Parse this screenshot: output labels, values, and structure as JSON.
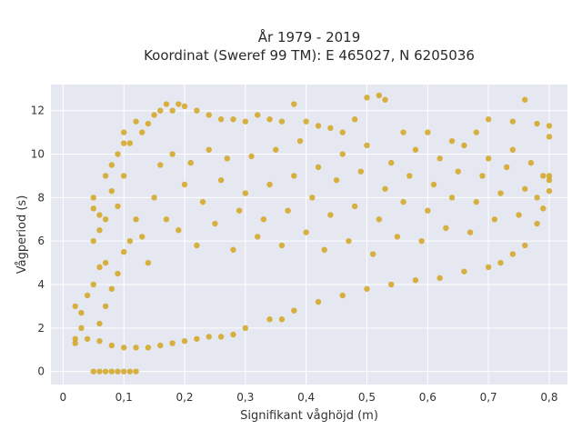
{
  "chart_data": {
    "type": "scatter",
    "title_lines": [
      "År 1979 - 2019",
      "Koordinat (Sweref 99 TM): E 465027, N 6205036"
    ],
    "xlabel": "Signifikant våghöjd (m)",
    "ylabel": "Vågperiod (s)",
    "xlim": [
      -0.02,
      0.83
    ],
    "ylim": [
      -0.6,
      13.2
    ],
    "xticks": [
      0,
      0.1,
      0.2,
      0.3,
      0.4,
      0.5,
      0.6,
      0.7,
      0.8
    ],
    "xtick_labels": [
      "0",
      "0,1",
      "0,2",
      "0,3",
      "0,4",
      "0,5",
      "0,6",
      "0,7",
      "0,8"
    ],
    "yticks": [
      0,
      2,
      4,
      6,
      8,
      10,
      12
    ],
    "ytick_labels": [
      "0",
      "2",
      "4",
      "6",
      "8",
      "10",
      "12"
    ],
    "grid": true,
    "background": "#e5e8f0",
    "marker_color": "#d4a520",
    "series": [
      {
        "values_description_note": "",
        "points": [
          [
            0.05,
            0
          ],
          [
            0.06,
            0
          ],
          [
            0.07,
            0
          ],
          [
            0.08,
            0
          ],
          [
            0.09,
            0
          ],
          [
            0.1,
            0
          ],
          [
            0.11,
            0
          ],
          [
            0.12,
            0
          ],
          [
            0.02,
            1.3
          ],
          [
            0.02,
            1.5
          ],
          [
            0.03,
            2.0
          ],
          [
            0.02,
            3.0
          ],
          [
            0.03,
            2.7
          ],
          [
            0.04,
            1.5
          ],
          [
            0.04,
            3.5
          ],
          [
            0.05,
            4.0
          ],
          [
            0.05,
            6.0
          ],
          [
            0.05,
            7.5
          ],
          [
            0.05,
            8.0
          ],
          [
            0.06,
            4.8
          ],
          [
            0.06,
            6.5
          ],
          [
            0.06,
            7.2
          ],
          [
            0.07,
            9.0
          ],
          [
            0.07,
            7.0
          ],
          [
            0.07,
            5.0
          ],
          [
            0.08,
            8.3
          ],
          [
            0.08,
            9.5
          ],
          [
            0.09,
            10.0
          ],
          [
            0.09,
            7.6
          ],
          [
            0.1,
            9.0
          ],
          [
            0.1,
            10.5
          ],
          [
            0.1,
            11.0
          ],
          [
            0.11,
            10.5
          ],
          [
            0.12,
            11.5
          ],
          [
            0.13,
            11.0
          ],
          [
            0.14,
            11.4
          ],
          [
            0.15,
            11.8
          ],
          [
            0.16,
            12.0
          ],
          [
            0.17,
            12.3
          ],
          [
            0.18,
            12.0
          ],
          [
            0.19,
            12.3
          ],
          [
            0.2,
            12.2
          ],
          [
            0.22,
            12.0
          ],
          [
            0.24,
            11.8
          ],
          [
            0.26,
            11.6
          ],
          [
            0.28,
            11.6
          ],
          [
            0.3,
            11.5
          ],
          [
            0.32,
            11.8
          ],
          [
            0.34,
            11.6
          ],
          [
            0.36,
            11.5
          ],
          [
            0.38,
            12.3
          ],
          [
            0.4,
            11.5
          ],
          [
            0.42,
            11.3
          ],
          [
            0.44,
            11.2
          ],
          [
            0.46,
            11.0
          ],
          [
            0.48,
            11.6
          ],
          [
            0.5,
            12.6
          ],
          [
            0.52,
            12.7
          ],
          [
            0.53,
            12.5
          ],
          [
            0.56,
            11.0
          ],
          [
            0.6,
            11.0
          ],
          [
            0.64,
            10.6
          ],
          [
            0.68,
            11.0
          ],
          [
            0.7,
            11.6
          ],
          [
            0.74,
            11.5
          ],
          [
            0.76,
            12.5
          ],
          [
            0.78,
            11.4
          ],
          [
            0.8,
            11.3
          ],
          [
            0.8,
            10.8
          ],
          [
            0.8,
            9.0
          ],
          [
            0.8,
            8.3
          ],
          [
            0.79,
            7.5
          ],
          [
            0.78,
            6.8
          ],
          [
            0.76,
            5.8
          ],
          [
            0.74,
            5.4
          ],
          [
            0.72,
            5.0
          ],
          [
            0.7,
            4.8
          ],
          [
            0.66,
            4.6
          ],
          [
            0.62,
            4.3
          ],
          [
            0.58,
            4.2
          ],
          [
            0.54,
            4.0
          ],
          [
            0.5,
            3.8
          ],
          [
            0.46,
            3.5
          ],
          [
            0.42,
            3.2
          ],
          [
            0.38,
            2.8
          ],
          [
            0.36,
            2.4
          ],
          [
            0.34,
            2.4
          ],
          [
            0.3,
            2.0
          ],
          [
            0.28,
            1.7
          ],
          [
            0.26,
            1.6
          ],
          [
            0.24,
            1.6
          ],
          [
            0.22,
            1.5
          ],
          [
            0.2,
            1.4
          ],
          [
            0.18,
            1.3
          ],
          [
            0.16,
            1.2
          ],
          [
            0.14,
            1.1
          ],
          [
            0.12,
            1.1
          ],
          [
            0.1,
            1.1
          ],
          [
            0.08,
            1.2
          ],
          [
            0.06,
            1.4
          ],
          [
            0.06,
            2.2
          ],
          [
            0.07,
            3.0
          ],
          [
            0.08,
            3.8
          ],
          [
            0.09,
            4.5
          ],
          [
            0.1,
            5.5
          ],
          [
            0.11,
            6.0
          ],
          [
            0.12,
            7.0
          ],
          [
            0.13,
            6.2
          ],
          [
            0.14,
            5.0
          ],
          [
            0.15,
            8.0
          ],
          [
            0.16,
            9.5
          ],
          [
            0.17,
            7.0
          ],
          [
            0.18,
            10.0
          ],
          [
            0.19,
            6.5
          ],
          [
            0.2,
            8.6
          ],
          [
            0.21,
            9.6
          ],
          [
            0.22,
            5.8
          ],
          [
            0.23,
            7.8
          ],
          [
            0.24,
            10.2
          ],
          [
            0.25,
            6.8
          ],
          [
            0.26,
            8.8
          ],
          [
            0.27,
            9.8
          ],
          [
            0.28,
            5.6
          ],
          [
            0.29,
            7.4
          ],
          [
            0.3,
            8.2
          ],
          [
            0.31,
            9.9
          ],
          [
            0.32,
            6.2
          ],
          [
            0.33,
            7.0
          ],
          [
            0.34,
            8.6
          ],
          [
            0.35,
            10.2
          ],
          [
            0.36,
            5.8
          ],
          [
            0.37,
            7.4
          ],
          [
            0.38,
            9.0
          ],
          [
            0.39,
            10.6
          ],
          [
            0.4,
            6.4
          ],
          [
            0.41,
            8.0
          ],
          [
            0.42,
            9.4
          ],
          [
            0.43,
            5.6
          ],
          [
            0.44,
            7.2
          ],
          [
            0.45,
            8.8
          ],
          [
            0.46,
            10.0
          ],
          [
            0.47,
            6.0
          ],
          [
            0.48,
            7.6
          ],
          [
            0.49,
            9.2
          ],
          [
            0.5,
            10.4
          ],
          [
            0.51,
            5.4
          ],
          [
            0.52,
            7.0
          ],
          [
            0.53,
            8.4
          ],
          [
            0.54,
            9.6
          ],
          [
            0.55,
            6.2
          ],
          [
            0.56,
            7.8
          ],
          [
            0.57,
            9.0
          ],
          [
            0.58,
            10.2
          ],
          [
            0.59,
            6.0
          ],
          [
            0.6,
            7.4
          ],
          [
            0.61,
            8.6
          ],
          [
            0.62,
            9.8
          ],
          [
            0.63,
            6.6
          ],
          [
            0.64,
            8.0
          ],
          [
            0.65,
            9.2
          ],
          [
            0.66,
            10.4
          ],
          [
            0.67,
            6.4
          ],
          [
            0.68,
            7.8
          ],
          [
            0.69,
            9.0
          ],
          [
            0.7,
            9.8
          ],
          [
            0.71,
            7.0
          ],
          [
            0.72,
            8.2
          ],
          [
            0.73,
            9.4
          ],
          [
            0.74,
            10.2
          ],
          [
            0.75,
            7.2
          ],
          [
            0.76,
            8.4
          ],
          [
            0.77,
            9.6
          ],
          [
            0.78,
            8.0
          ],
          [
            0.79,
            9.0
          ],
          [
            0.8,
            8.8
          ]
        ]
      }
    ]
  }
}
